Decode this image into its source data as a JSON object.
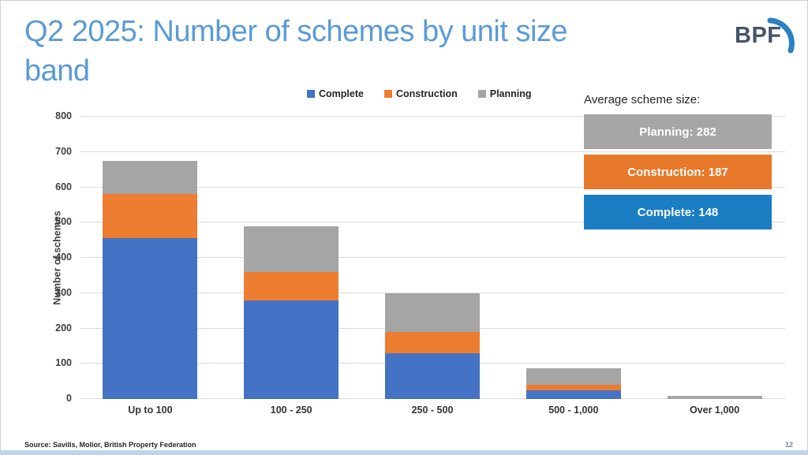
{
  "slide": {
    "title": "Q2 2025: Number of schemes by unit size band",
    "logo_text": "BPF",
    "source": "Source: Savills, Molior, British Property Federation",
    "page_number": "12"
  },
  "average_panel": {
    "label": "Average scheme size:",
    "items": [
      {
        "text": "Planning: 282",
        "color": "#A6A6A6"
      },
      {
        "text": "Construction: 187",
        "color": "#E8792B"
      },
      {
        "text": "Complete: 148",
        "color": "#1B7EC3"
      }
    ]
  },
  "chart_data": {
    "type": "bar",
    "stacked": true,
    "title": "",
    "xlabel": "",
    "ylabel": "Number of schemes",
    "categories": [
      "Up to 100",
      "100 - 250",
      "250 - 500",
      "500 - 1,000",
      "Over 1,000"
    ],
    "series": [
      {
        "name": "Complete",
        "color": "#4472C4",
        "values": [
          455,
          280,
          130,
          25,
          0
        ]
      },
      {
        "name": "Construction",
        "color": "#ED7D31",
        "values": [
          125,
          80,
          60,
          15,
          0
        ]
      },
      {
        "name": "Planning",
        "color": "#A5A5A5",
        "values": [
          95,
          130,
          110,
          47,
          8
        ]
      }
    ],
    "ylim": [
      0,
      800
    ],
    "ytick_step": 100,
    "grid": true,
    "legend_position": "top"
  }
}
